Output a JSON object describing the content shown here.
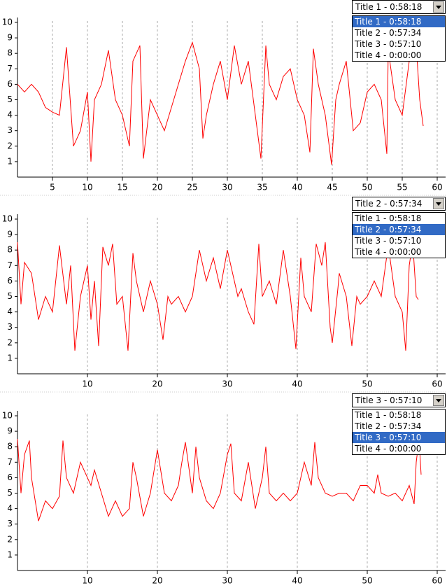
{
  "chart_data": [
    {
      "type": "line",
      "xlim": [
        0,
        61.2
      ],
      "ylim": [
        0,
        10
      ],
      "xticks": [
        5,
        10,
        15,
        20,
        25,
        30,
        35,
        40,
        45,
        50,
        55,
        60
      ],
      "yticks": [
        1,
        2,
        3,
        4,
        5,
        6,
        7,
        8,
        9,
        10
      ],
      "grid": true,
      "series": [
        {
          "color": "#ff0000",
          "x": [
            0,
            1,
            2,
            3,
            4,
            5,
            6,
            7,
            8,
            9,
            10,
            10.5,
            11,
            12,
            13,
            14,
            15,
            16,
            16.5,
            17.5,
            18,
            19,
            20,
            21,
            22,
            23,
            24,
            25,
            26,
            26.5,
            27,
            28,
            29,
            30,
            31,
            32,
            33,
            34,
            34.8,
            35.5,
            36,
            37,
            38,
            39,
            40,
            41,
            41.8,
            42.3,
            43,
            44,
            44.9,
            45.5,
            46,
            47,
            48,
            49,
            50,
            51,
            52,
            52.8,
            53,
            54,
            55,
            56,
            57,
            57.5,
            58
          ],
          "values": [
            6,
            5.5,
            6,
            5.5,
            4.5,
            4.2,
            4,
            8.4,
            2,
            3,
            5.5,
            1,
            5,
            6,
            8.2,
            5,
            4,
            2,
            7.5,
            8.5,
            1.2,
            5,
            4,
            3,
            4.5,
            6,
            7.5,
            8.7,
            7,
            2.5,
            4,
            6,
            7.5,
            5,
            8.5,
            6,
            7.5,
            4,
            1.2,
            8.5,
            6,
            5,
            6.5,
            7,
            5,
            4,
            1.6,
            8.3,
            6,
            4,
            0.8,
            5,
            6,
            7.5,
            3,
            3.5,
            5.5,
            6,
            5,
            1.5,
            8.2,
            5,
            4,
            7.5,
            8.5,
            5,
            3.3
          ]
        }
      ]
    },
    {
      "type": "line",
      "xlim": [
        0,
        61.2
      ],
      "ylim": [
        0,
        10
      ],
      "xticks": [
        10,
        20,
        30,
        40,
        50,
        60
      ],
      "yticks": [
        1,
        2,
        3,
        4,
        5,
        6,
        7,
        8,
        9,
        10
      ],
      "grid": true,
      "series": [
        {
          "color": "#ff0000",
          "x": [
            0,
            0.5,
            1,
            2,
            3,
            4,
            5,
            6,
            7,
            7.6,
            8.2,
            9,
            10,
            10.5,
            11,
            11.6,
            12.2,
            13,
            13.6,
            14.2,
            15,
            15.8,
            16.5,
            17,
            18,
            19,
            20,
            20.8,
            21.5,
            22,
            23,
            24,
            25,
            26,
            27,
            28,
            29,
            30,
            31,
            31.5,
            32,
            33,
            33.8,
            34.5,
            35,
            36,
            37,
            38,
            39,
            39.8,
            40.5,
            41,
            42,
            42.7,
            43.5,
            44,
            44.7,
            45,
            45.8,
            46,
            47,
            47.8,
            48.5,
            49,
            50,
            51,
            52,
            53,
            54,
            55,
            55.5,
            56,
            56.5,
            57,
            57.3
          ],
          "values": [
            8.5,
            4.5,
            7.2,
            6.5,
            3.5,
            5,
            4,
            8.3,
            4.5,
            7,
            1.5,
            5,
            7,
            3.5,
            6,
            1.8,
            8.2,
            7,
            8.4,
            4.5,
            5,
            1.5,
            7.8,
            6,
            4,
            6,
            4.5,
            2.2,
            5,
            4.5,
            5,
            4,
            5,
            8,
            6,
            7.5,
            5.5,
            8,
            6,
            5,
            5.5,
            4,
            3.2,
            8.4,
            5,
            6,
            4.5,
            8,
            5,
            1.6,
            7.5,
            5,
            4,
            8.4,
            7,
            8.5,
            3,
            2,
            5.5,
            6.5,
            5,
            1.8,
            5,
            4.5,
            5,
            6,
            5,
            8.3,
            5,
            4,
            1.5,
            7,
            8.5,
            5,
            4.8
          ]
        }
      ]
    },
    {
      "type": "line",
      "xlim": [
        0,
        61.2
      ],
      "ylim": [
        0,
        10
      ],
      "xticks": [
        10,
        20,
        30,
        40,
        50,
        60
      ],
      "yticks": [
        1,
        2,
        3,
        4,
        5,
        6,
        7,
        8,
        9,
        10
      ],
      "grid": true,
      "series": [
        {
          "color": "#ff0000",
          "x": [
            0,
            0.5,
            1,
            1.7,
            2,
            3,
            4,
            5,
            6,
            6.5,
            7,
            8,
            9,
            10,
            10.5,
            11,
            12,
            13,
            14,
            15,
            16,
            16.5,
            17,
            18,
            19,
            20,
            21,
            22,
            23,
            23.5,
            24,
            25,
            25.5,
            26,
            27,
            28,
            29,
            30,
            30.5,
            31,
            32,
            33,
            34,
            35,
            35.5,
            36,
            37,
            38,
            39,
            40,
            41,
            42,
            42.5,
            43,
            44,
            45,
            46,
            47,
            48,
            49,
            50,
            51,
            51.5,
            52,
            53,
            54,
            55,
            56,
            56.7,
            57,
            57.4,
            57.7
          ],
          "values": [
            8.5,
            5,
            7.5,
            8.4,
            6,
            3.2,
            4.5,
            4,
            4.8,
            8.4,
            6,
            5,
            7,
            6,
            5.5,
            6.5,
            5,
            3.5,
            4.5,
            3.5,
            4,
            7,
            6,
            3.5,
            5,
            7.8,
            5,
            4.5,
            5.5,
            7,
            8.3,
            5,
            8,
            6,
            4.5,
            4,
            5,
            7.5,
            8.2,
            5,
            4.5,
            7,
            4,
            6,
            8,
            5,
            4.5,
            5,
            4.5,
            5,
            7,
            5.5,
            8.3,
            6,
            5,
            4.8,
            5,
            5,
            4.5,
            5.5,
            5.5,
            5,
            6.2,
            5,
            4.8,
            5,
            4.5,
            5.5,
            4.3,
            7,
            8.5,
            6.2
          ]
        }
      ]
    }
  ],
  "dropdowns": [
    {
      "selected": 0,
      "options": [
        "Title 1 - 0:58:18",
        "Title 2 - 0:57:34",
        "Title 3 - 0:57:10",
        "Title 4 - 0:00:00"
      ]
    },
    {
      "selected": 1,
      "options": [
        "Title 1 - 0:58:18",
        "Title 2 - 0:57:34",
        "Title 3 - 0:57:10",
        "Title 4 - 0:00:00"
      ]
    },
    {
      "selected": 2,
      "options": [
        "Title 1 - 0:58:18",
        "Title 2 - 0:57:34",
        "Title 3 - 0:57:10",
        "Title 4 - 0:00:00"
      ]
    }
  ]
}
